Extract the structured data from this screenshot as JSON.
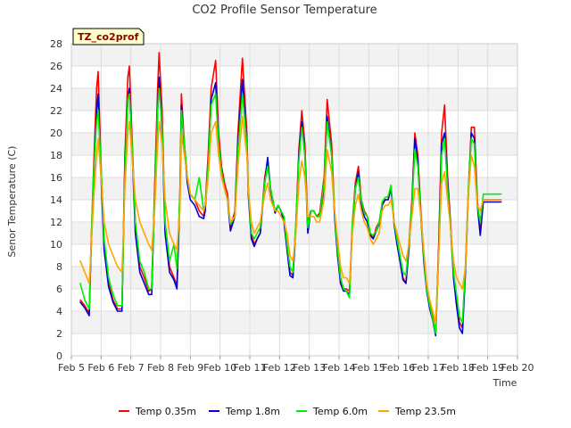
{
  "chart_data": {
    "type": "line",
    "title": "CO2 Profile Sensor Temperature",
    "xlabel": "Time",
    "ylabel": "Senor Temperature (C)",
    "tag": "TZ_co2prof",
    "xlim": [
      5,
      20
    ],
    "ylim": [
      0,
      28
    ],
    "x_ticks": [
      5,
      6,
      7,
      8,
      9,
      10,
      11,
      12,
      13,
      14,
      15,
      16,
      17,
      18,
      19,
      20
    ],
    "x_tick_labels": [
      "Feb 5",
      "Feb 6",
      "Feb 7",
      "Feb 8",
      "Feb 9",
      "Feb 10",
      "Feb 11",
      "Feb 12",
      "Feb 13",
      "Feb 14",
      "Feb 15",
      "Feb 16",
      "Feb 17",
      "Feb 18",
      "Feb 19",
      "Feb 20"
    ],
    "y_ticks": [
      0,
      2,
      4,
      6,
      8,
      10,
      12,
      14,
      16,
      18,
      20,
      22,
      24,
      26,
      28
    ],
    "y_tick_labels": [
      "0",
      "2",
      "4",
      "6",
      "8",
      "10",
      "12",
      "14",
      "16",
      "18",
      "20",
      "22",
      "24",
      "26",
      "28"
    ],
    "legend_position": "bottom",
    "x": [
      5.3,
      5.45,
      5.6,
      5.65,
      5.75,
      5.85,
      5.9,
      6.0,
      6.1,
      6.25,
      6.4,
      6.55,
      6.7,
      6.8,
      6.9,
      6.95,
      7.05,
      7.15,
      7.3,
      7.45,
      7.6,
      7.7,
      7.8,
      7.9,
      7.95,
      8.05,
      8.15,
      8.3,
      8.45,
      8.55,
      8.65,
      8.7,
      8.8,
      8.9,
      9.0,
      9.15,
      9.3,
      9.45,
      9.5,
      9.6,
      9.7,
      9.85,
      9.95,
      10.05,
      10.15,
      10.25,
      10.35,
      10.5,
      10.6,
      10.75,
      10.9,
      10.95,
      11.05,
      11.15,
      11.25,
      11.35,
      11.5,
      11.6,
      11.7,
      11.85,
      11.95,
      12.05,
      12.15,
      12.25,
      12.35,
      12.45,
      12.55,
      12.65,
      12.75,
      12.85,
      12.95,
      13.05,
      13.15,
      13.25,
      13.35,
      13.5,
      13.6,
      13.75,
      13.85,
      13.95,
      14.05,
      14.15,
      14.25,
      14.35,
      14.45,
      14.55,
      14.65,
      14.75,
      14.85,
      14.95,
      15.05,
      15.15,
      15.25,
      15.35,
      15.45,
      15.55,
      15.65,
      15.75,
      15.85,
      15.95,
      16.05,
      16.15,
      16.25,
      16.35,
      16.45,
      16.55,
      16.65,
      16.75,
      16.85,
      16.95,
      17.05,
      17.15,
      17.25,
      17.35,
      17.45,
      17.55,
      17.65,
      17.75,
      17.85,
      17.95,
      18.05,
      18.15,
      18.25,
      18.35,
      18.45,
      18.55,
      18.65,
      18.75,
      18.85,
      18.95,
      19.05,
      19.15,
      19.25,
      19.35,
      19.45
    ],
    "series": [
      {
        "name": "Temp 0.35m",
        "color": "#ff0000",
        "values": [
          5.0,
          4.5,
          3.8,
          9.0,
          17.0,
          24.0,
          25.5,
          17.0,
          10.0,
          6.5,
          5.0,
          4.2,
          4.2,
          18.0,
          25.0,
          26.0,
          19.0,
          12.0,
          8.0,
          7.0,
          5.8,
          6.0,
          15.0,
          24.0,
          27.2,
          22.0,
          12.0,
          8.0,
          7.0,
          6.3,
          15.0,
          23.5,
          19.0,
          16.0,
          14.5,
          14.0,
          13.0,
          12.5,
          13.5,
          18.0,
          24.0,
          26.5,
          20.0,
          17.0,
          15.5,
          14.5,
          11.5,
          13.0,
          20.0,
          26.7,
          20.0,
          15.0,
          11.0,
          10.0,
          10.5,
          11.0,
          16.0,
          17.5,
          15.0,
          13.0,
          13.5,
          13.0,
          12.0,
          10.0,
          7.5,
          7.2,
          12.0,
          18.5,
          22.0,
          19.0,
          12.0,
          13.0,
          13.0,
          12.5,
          12.8,
          16.0,
          23.0,
          19.0,
          13.0,
          10.0,
          7.0,
          6.0,
          6.0,
          5.8,
          12.0,
          15.5,
          17.0,
          14.0,
          13.0,
          12.5,
          11.0,
          10.5,
          11.5,
          12.0,
          13.5,
          14.0,
          14.0,
          15.0,
          12.0,
          10.5,
          9.0,
          7.0,
          6.5,
          10.0,
          14.0,
          20.0,
          18.0,
          13.0,
          9.0,
          6.0,
          4.5,
          3.5,
          2.0,
          10.0,
          20.0,
          22.5,
          16.0,
          12.0,
          7.5,
          5.0,
          3.0,
          2.5,
          8.0,
          15.0,
          20.5,
          20.5,
          14.0,
          11.0,
          14.0,
          14.0,
          14.0,
          14.0,
          14.0,
          14.0,
          14.0
        ]
      },
      {
        "name": "Temp 1.8m",
        "color": "#0000cc",
        "values": [
          4.8,
          4.3,
          3.6,
          8.5,
          16.0,
          22.0,
          23.5,
          16.0,
          9.5,
          6.2,
          4.8,
          4.0,
          4.0,
          17.0,
          23.0,
          24.0,
          18.0,
          11.0,
          7.5,
          6.5,
          5.5,
          5.5,
          14.0,
          22.0,
          25.0,
          20.0,
          11.0,
          7.5,
          6.8,
          6.0,
          14.0,
          22.5,
          18.5,
          15.5,
          14.0,
          13.5,
          12.5,
          12.3,
          13.0,
          17.0,
          23.0,
          24.5,
          19.0,
          16.5,
          15.0,
          14.0,
          11.2,
          12.5,
          19.0,
          24.8,
          19.0,
          14.5,
          10.5,
          9.8,
          10.5,
          11.0,
          15.5,
          17.8,
          14.8,
          12.8,
          13.5,
          13.0,
          12.0,
          9.5,
          7.2,
          7.0,
          11.5,
          18.0,
          21.0,
          18.0,
          11.0,
          13.0,
          13.0,
          12.5,
          12.5,
          15.0,
          21.5,
          18.0,
          12.5,
          9.0,
          6.5,
          5.8,
          5.8,
          5.5,
          11.5,
          15.0,
          16.5,
          13.5,
          12.5,
          12.0,
          10.8,
          10.5,
          11.2,
          11.8,
          13.5,
          14.0,
          14.0,
          15.0,
          11.8,
          10.0,
          8.5,
          6.8,
          6.5,
          9.5,
          13.5,
          19.5,
          17.5,
          12.5,
          8.5,
          5.8,
          4.2,
          3.2,
          1.8,
          9.5,
          19.0,
          20.0,
          15.5,
          11.5,
          7.0,
          4.5,
          2.5,
          2.0,
          7.5,
          14.5,
          20.0,
          19.5,
          13.5,
          10.8,
          13.8,
          13.8,
          13.8,
          13.8,
          13.8,
          13.8,
          13.8
        ]
      },
      {
        "name": "Temp 6.0m",
        "color": "#00ee00",
        "values": [
          6.5,
          5.0,
          4.2,
          9.0,
          16.5,
          21.0,
          22.0,
          17.0,
          10.5,
          7.0,
          5.5,
          4.5,
          4.5,
          16.5,
          23.0,
          23.5,
          18.5,
          12.0,
          8.5,
          7.5,
          6.0,
          6.0,
          14.0,
          22.0,
          24.0,
          20.5,
          12.0,
          8.5,
          10.0,
          7.8,
          14.5,
          22.0,
          19.0,
          16.0,
          14.5,
          14.0,
          16.0,
          13.0,
          13.5,
          17.0,
          22.5,
          23.5,
          19.0,
          16.5,
          15.0,
          14.0,
          11.8,
          12.5,
          18.5,
          23.5,
          19.0,
          15.0,
          11.0,
          10.5,
          11.0,
          11.5,
          15.5,
          17.0,
          15.0,
          13.0,
          13.5,
          13.0,
          12.5,
          10.0,
          8.0,
          7.5,
          12.0,
          17.5,
          20.5,
          18.0,
          11.5,
          13.0,
          13.0,
          12.5,
          12.5,
          15.5,
          21.0,
          18.0,
          13.0,
          9.5,
          7.0,
          6.0,
          5.8,
          5.2,
          12.0,
          15.0,
          16.0,
          14.0,
          12.8,
          12.5,
          11.0,
          10.8,
          11.2,
          12.0,
          13.8,
          14.2,
          14.3,
          15.3,
          12.0,
          10.5,
          9.0,
          7.5,
          7.2,
          10.0,
          13.5,
          18.5,
          17.0,
          12.5,
          9.0,
          6.0,
          4.5,
          3.3,
          2.0,
          9.0,
          18.0,
          19.5,
          15.0,
          11.5,
          7.5,
          5.5,
          3.5,
          3.0,
          8.0,
          15.0,
          19.5,
          19.0,
          13.5,
          12.0,
          14.5,
          14.5,
          14.5,
          14.5,
          14.5,
          14.5,
          14.5
        ]
      },
      {
        "name": "Temp 23.5m",
        "color": "#ffa500",
        "values": [
          8.5,
          7.5,
          6.5,
          9.0,
          14.0,
          18.0,
          19.5,
          16.0,
          12.0,
          10.0,
          9.0,
          8.0,
          7.5,
          15.0,
          20.0,
          21.0,
          17.5,
          14.0,
          12.0,
          11.0,
          10.0,
          9.5,
          13.0,
          19.0,
          21.0,
          19.0,
          14.0,
          11.0,
          10.0,
          9.5,
          13.0,
          20.0,
          18.0,
          16.0,
          14.5,
          14.0,
          13.5,
          13.0,
          13.5,
          16.0,
          20.0,
          21.0,
          18.0,
          16.0,
          15.0,
          14.0,
          12.0,
          12.5,
          17.0,
          21.5,
          18.0,
          15.0,
          12.0,
          11.0,
          11.5,
          12.0,
          14.5,
          15.5,
          14.0,
          13.0,
          13.0,
          12.5,
          12.0,
          11.0,
          9.0,
          8.5,
          11.0,
          15.5,
          17.5,
          16.0,
          12.5,
          12.5,
          12.5,
          12.0,
          12.0,
          14.0,
          18.5,
          16.5,
          13.0,
          10.5,
          8.0,
          7.0,
          7.0,
          6.5,
          11.0,
          13.5,
          14.5,
          13.0,
          12.0,
          11.5,
          10.5,
          10.0,
          10.5,
          11.0,
          13.0,
          13.5,
          13.5,
          14.0,
          12.0,
          11.0,
          10.0,
          9.0,
          8.5,
          10.0,
          12.5,
          15.0,
          15.0,
          12.5,
          9.5,
          6.5,
          5.0,
          4.0,
          3.0,
          9.0,
          15.5,
          16.5,
          14.0,
          11.5,
          8.5,
          7.0,
          6.5,
          6.0,
          8.0,
          14.5,
          18.0,
          17.0,
          13.5,
          13.0,
          14.0,
          14.0,
          14.0,
          14.0,
          14.0,
          14.0,
          14.0
        ]
      }
    ]
  }
}
